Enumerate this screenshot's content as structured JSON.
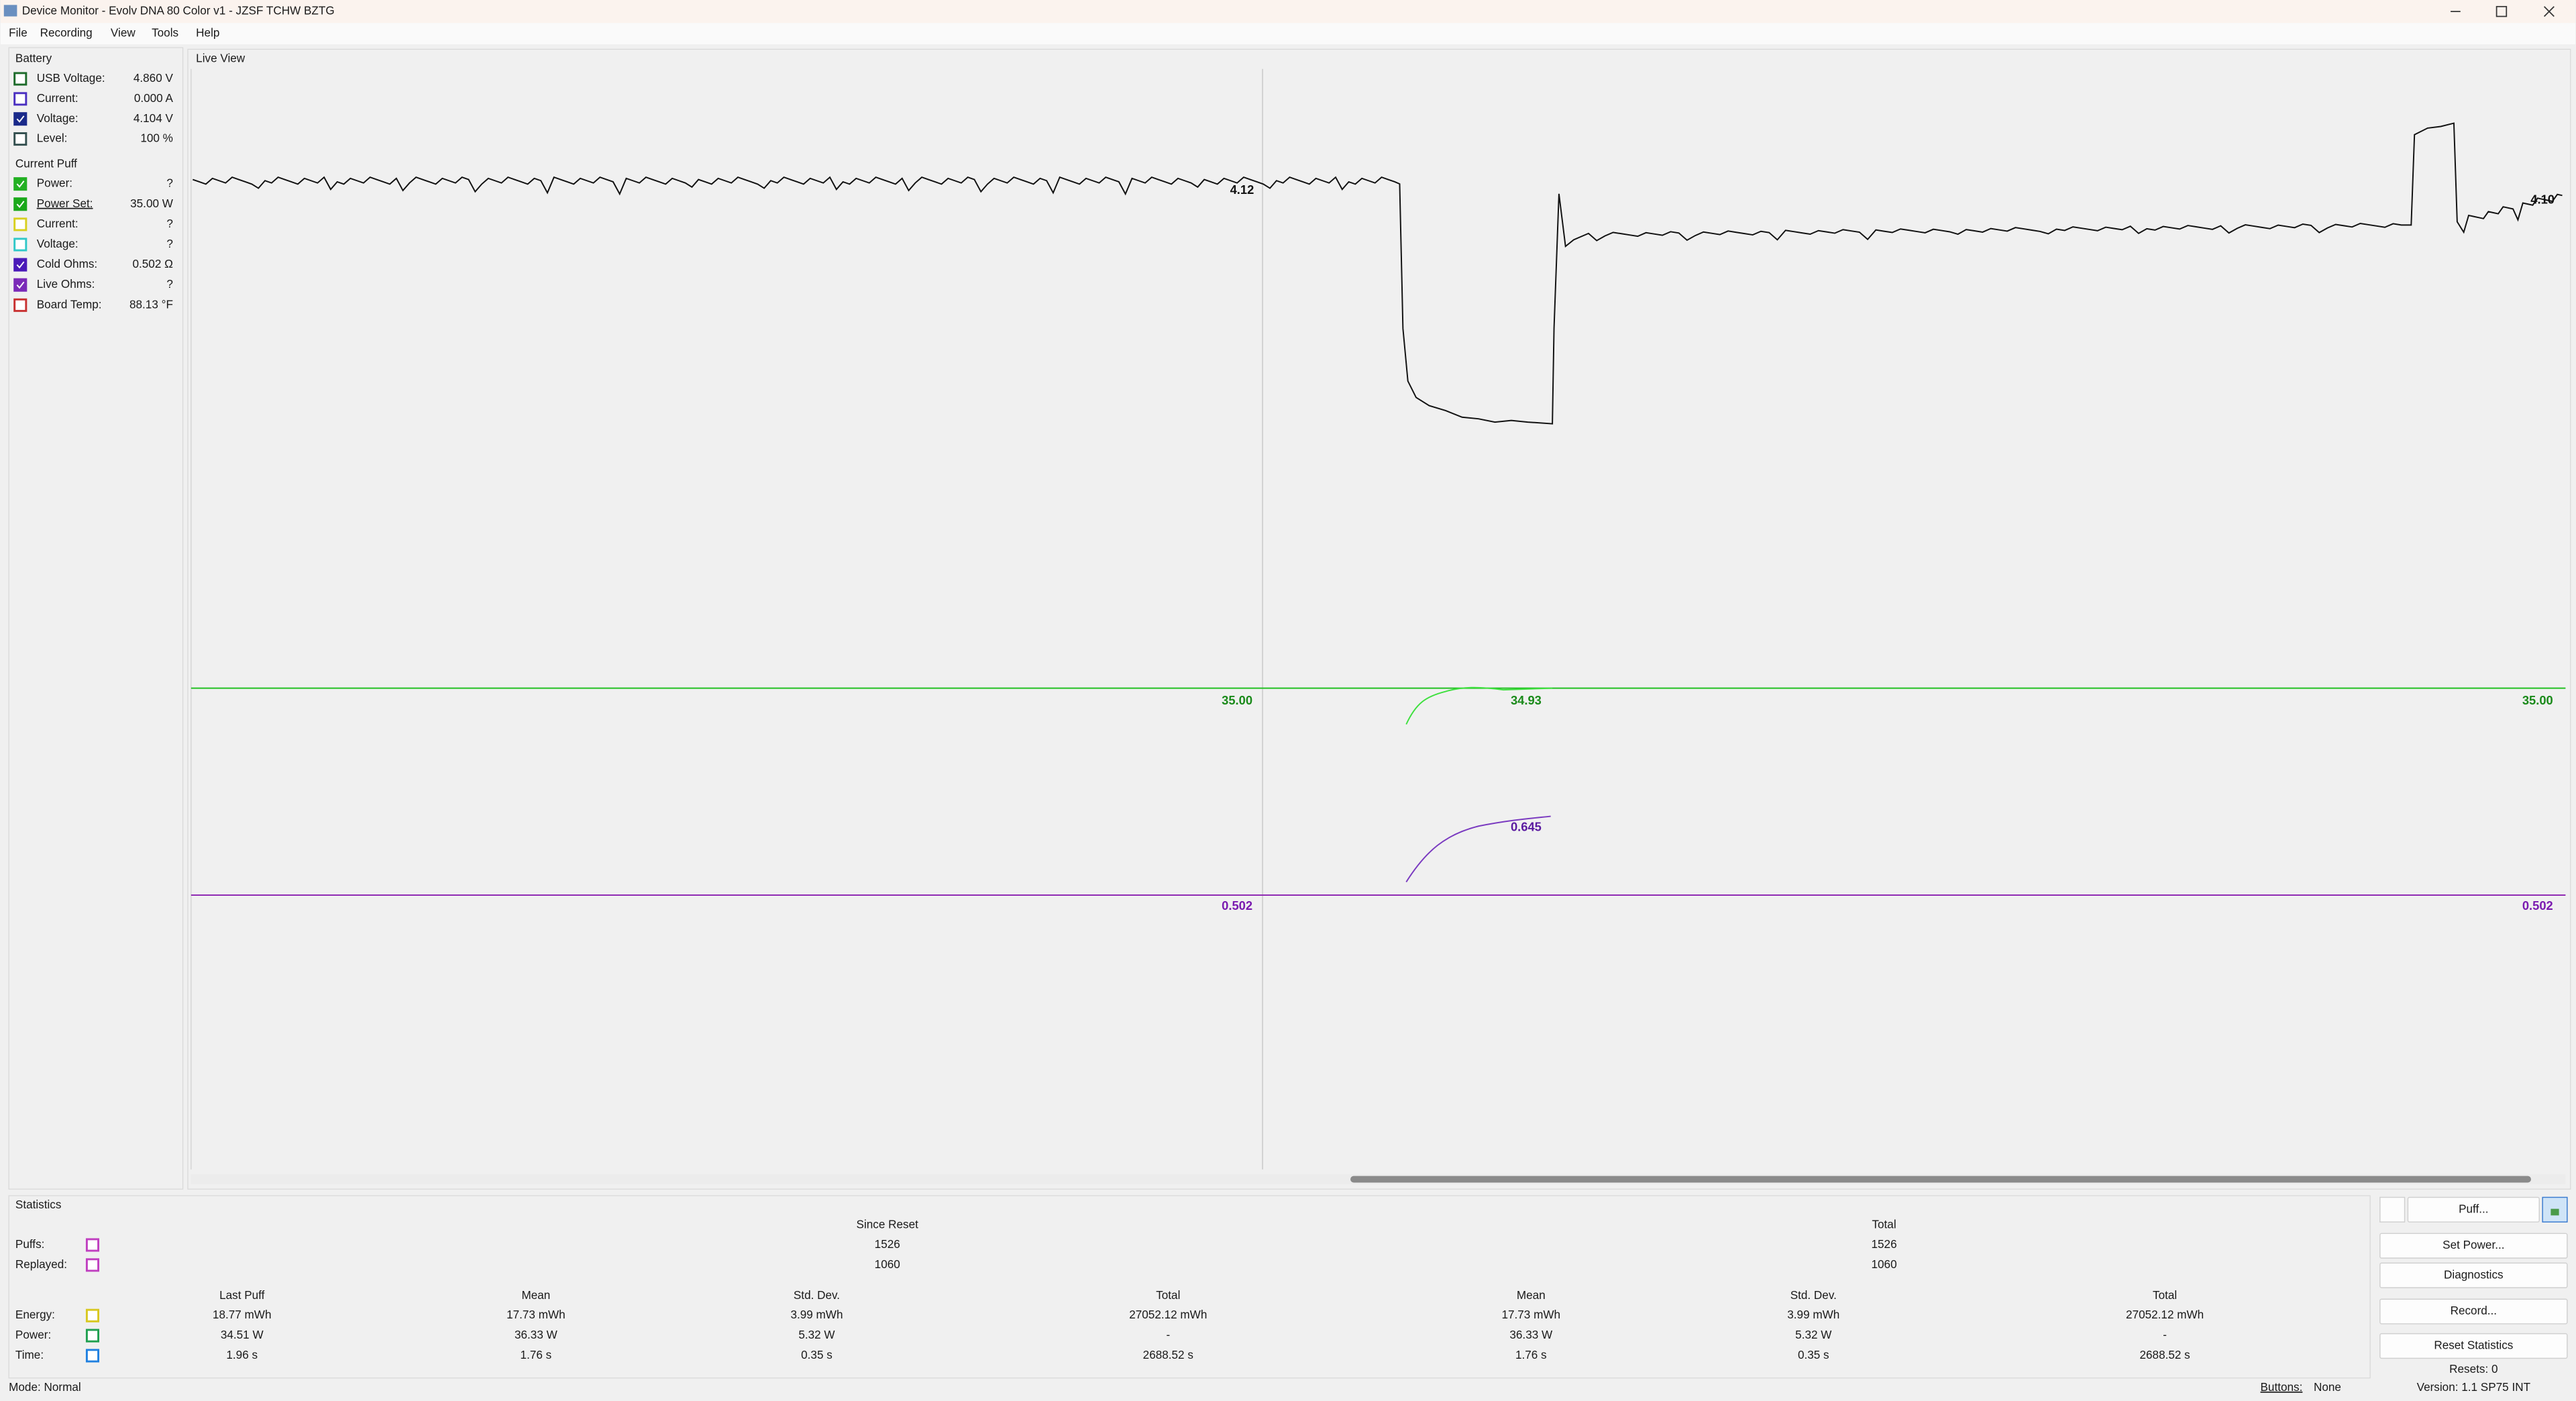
{
  "window": {
    "title": "Device Monitor - Evolv DNA 80 Color v1 - JZSF TCHW BZTG"
  },
  "menu": [
    "File",
    "Recording",
    "View",
    "Tools",
    "Help"
  ],
  "battery": {
    "title": "Battery",
    "items": [
      {
        "label": "USB Voltage:",
        "value": "4.860 V"
      },
      {
        "label": "Current:",
        "value": "0.000 A"
      },
      {
        "label": "Voltage:",
        "value": "4.104 V"
      },
      {
        "label": "Level:",
        "value": "100 %"
      }
    ]
  },
  "current_puff": {
    "title": "Current Puff",
    "items": [
      {
        "label": "Power:",
        "value": "?"
      },
      {
        "label": "Power Set:",
        "value": "35.00 W"
      },
      {
        "label": "Current:",
        "value": "?"
      },
      {
        "label": "Voltage:",
        "value": "?"
      },
      {
        "label": "Cold Ohms:",
        "value": "0.502 Ω"
      },
      {
        "label": "Live Ohms:",
        "value": "?"
      },
      {
        "label": "Board Temp:",
        "value": "88.13 °F"
      }
    ]
  },
  "live_view": {
    "title": "Live View",
    "labels": [
      "4.12",
      "4.10",
      "35.00",
      "34.93",
      "35.00",
      "0.645",
      "0.502",
      "0.502"
    ]
  },
  "statistics": {
    "title": "Statistics",
    "since_reset": "Since Reset",
    "total": "Total",
    "counts": [
      {
        "label": "Puffs:",
        "since_reset": "1526",
        "total": "1526"
      },
      {
        "label": "Replayed:",
        "since_reset": "1060",
        "total": "1060"
      }
    ],
    "columns": [
      "Last Puff",
      "Mean",
      "Std. Dev.",
      "Total",
      "Mean",
      "Std. Dev.",
      "Total"
    ],
    "rows": [
      {
        "label": "Energy:",
        "values": [
          "18.77 mWh",
          "17.73 mWh",
          "3.99 mWh",
          "27052.12 mWh",
          "17.73 mWh",
          "3.99 mWh",
          "27052.12 mWh"
        ]
      },
      {
        "label": "Power:",
        "values": [
          "34.51 W",
          "36.33 W",
          "5.32 W",
          "-",
          "36.33 W",
          "5.32 W",
          "-"
        ]
      },
      {
        "label": "Time:",
        "values": [
          "1.96 s",
          "1.76 s",
          "0.35 s",
          "2688.52 s",
          "1.76 s",
          "0.35 s",
          "2688.52 s"
        ]
      }
    ]
  },
  "buttons": [
    "Puff...",
    "Set Power...",
    "Diagnostics",
    "Record...",
    "Reset Statistics"
  ],
  "resets": "Resets: 0",
  "status": {
    "mode": "Mode: Normal",
    "buttons_label": "Buttons:",
    "buttons_value": "None",
    "version": "Version: 1.1 SP75 INT"
  }
}
